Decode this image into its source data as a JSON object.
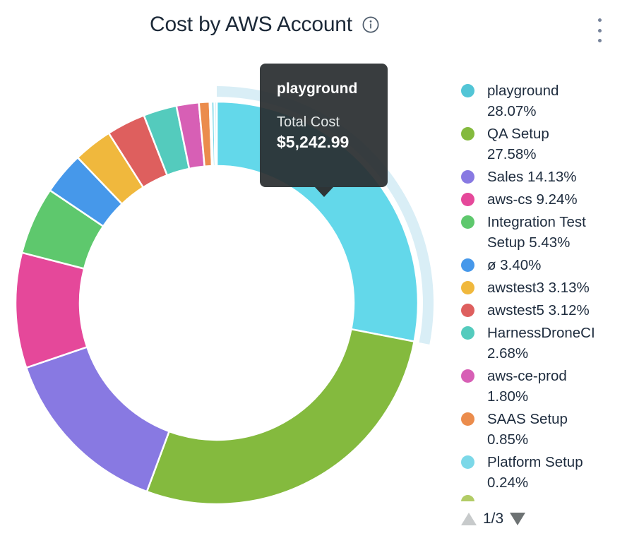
{
  "header": {
    "title": "Cost by AWS Account",
    "info_icon": "info-circle",
    "menu_icon": "kebab-vertical"
  },
  "tooltip": {
    "title": "playground",
    "metric_label": "Total Cost",
    "value": "$5,242.99"
  },
  "legend_pagination": {
    "current_page": "1/3",
    "up_arrow_color": "#c7cacb",
    "down_arrow_color": "#6d7273",
    "peek_next_item_color": "#b2cc66"
  },
  "chart_data": {
    "type": "pie",
    "subtype": "donut",
    "title": "Cost by AWS Account",
    "value_unit": "percent_of_total_cost",
    "legend_position": "right",
    "highlighted_slice": "playground",
    "highlighted_slice_total_cost": "$5,242.99",
    "highlight_halo_color": "#d9eef6",
    "slices": [
      {
        "label": "playground",
        "value": 28.07,
        "color": "#52c5d6",
        "slice_color": "#63d8ea",
        "in_legend": true
      },
      {
        "label": "QA Setup",
        "value": 27.58,
        "color": "#84ba3e",
        "in_legend": true
      },
      {
        "label": "Sales",
        "value": 14.13,
        "color": "#8879e2",
        "in_legend": true
      },
      {
        "label": "aws-cs",
        "value": 9.24,
        "color": "#e5489a",
        "in_legend": true
      },
      {
        "label": "Integration Test Setup",
        "value": 5.43,
        "color": "#5ec86d",
        "in_legend": true
      },
      {
        "label": "ø",
        "value": 3.4,
        "color": "#4698ea",
        "in_legend": true
      },
      {
        "label": "awstest3",
        "value": 3.13,
        "color": "#f0b83d",
        "in_legend": true
      },
      {
        "label": "awstest5",
        "value": 3.12,
        "color": "#de5f5e",
        "in_legend": true
      },
      {
        "label": "HarnessDroneCI",
        "value": 2.68,
        "color": "#54cbbd",
        "in_legend": true
      },
      {
        "label": "aws-ce-prod",
        "value": 1.8,
        "color": "#d75fb5",
        "in_legend": true
      },
      {
        "label": "SAAS Setup",
        "value": 0.85,
        "color": "#eb8c4c",
        "in_legend": true
      },
      {
        "label": "",
        "value": 0.14,
        "color": "#b5c94e",
        "in_legend": false
      },
      {
        "label": "Platform Setup",
        "value": 0.24,
        "color": "#7cd8e8",
        "in_legend": true
      },
      {
        "label": "",
        "value": 0.19,
        "color": "#cdeaf2",
        "in_legend": false
      }
    ]
  }
}
